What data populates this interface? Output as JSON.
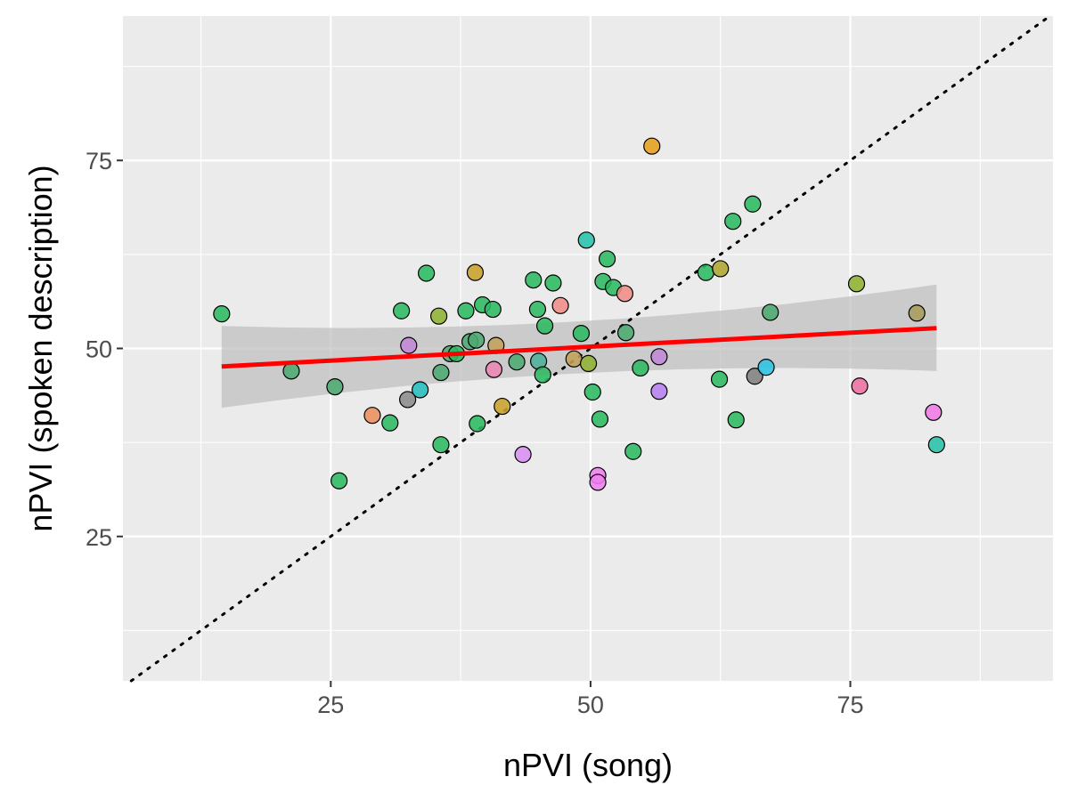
{
  "chart_data": {
    "type": "scatter",
    "xlabel": "nPVI (song)",
    "ylabel": "nPVI (spoken description)",
    "xlim": [
      5.0,
      94.5
    ],
    "ylim": [
      5.8,
      94.2
    ],
    "x_ticks": [
      25,
      50,
      75
    ],
    "y_ticks": [
      25,
      50,
      75
    ],
    "x_tick_labels": [
      "25",
      "50",
      "75"
    ],
    "y_tick_labels": [
      "25",
      "50",
      "75"
    ],
    "grid": true,
    "legend": "none",
    "reference_line": {
      "type": "identity",
      "style": "dotted",
      "color": "#000000"
    },
    "regression": {
      "method": "linear",
      "x_range": [
        14.5,
        83.3
      ],
      "line": [
        [
          14.5,
          47.6
        ],
        [
          83.3,
          52.7
        ]
      ],
      "ci_band": {
        "x": [
          14.5,
          83.3
        ],
        "lower": [
          42.1,
          47.0
        ],
        "upper": [
          53.0,
          58.5
        ]
      },
      "line_color": "#ff0000",
      "band_color": "#bdbdbd"
    },
    "points": [
      {
        "x": 14.5,
        "y": 54.6,
        "color": "#2bb961"
      },
      {
        "x": 21.2,
        "y": 47.0,
        "color": "#4daa72"
      },
      {
        "x": 25.4,
        "y": 44.9,
        "color": "#4daa72"
      },
      {
        "x": 25.8,
        "y": 32.4,
        "color": "#2bb961"
      },
      {
        "x": 29.0,
        "y": 41.1,
        "color": "#eb8f5d"
      },
      {
        "x": 30.7,
        "y": 40.1,
        "color": "#2bb961"
      },
      {
        "x": 31.8,
        "y": 55.0,
        "color": "#2bb961"
      },
      {
        "x": 32.4,
        "y": 43.2,
        "color": "#8b8b8b"
      },
      {
        "x": 32.5,
        "y": 50.4,
        "color": "#c388d6"
      },
      {
        "x": 33.6,
        "y": 44.5,
        "color": "#24bdbd"
      },
      {
        "x": 34.2,
        "y": 60.0,
        "color": "#2bb961"
      },
      {
        "x": 35.4,
        "y": 54.3,
        "color": "#8fb232"
      },
      {
        "x": 35.6,
        "y": 37.2,
        "color": "#2bb961"
      },
      {
        "x": 35.6,
        "y": 46.8,
        "color": "#4daa72"
      },
      {
        "x": 36.5,
        "y": 49.3,
        "color": "#4daa72"
      },
      {
        "x": 37.1,
        "y": 49.3,
        "color": "#2bb961"
      },
      {
        "x": 38.0,
        "y": 55.0,
        "color": "#2bb961"
      },
      {
        "x": 38.4,
        "y": 50.9,
        "color": "#4daa72"
      },
      {
        "x": 38.9,
        "y": 60.1,
        "color": "#c9a12a"
      },
      {
        "x": 39.0,
        "y": 51.1,
        "color": "#4daa72"
      },
      {
        "x": 39.1,
        "y": 40.0,
        "color": "#2bb961"
      },
      {
        "x": 39.6,
        "y": 55.8,
        "color": "#2bb961"
      },
      {
        "x": 40.6,
        "y": 55.2,
        "color": "#2bb961"
      },
      {
        "x": 40.7,
        "y": 47.2,
        "color": "#ea86b3"
      },
      {
        "x": 40.9,
        "y": 50.4,
        "color": "#c0a25a"
      },
      {
        "x": 41.5,
        "y": 42.3,
        "color": "#c9a12a"
      },
      {
        "x": 42.9,
        "y": 48.2,
        "color": "#4daa72"
      },
      {
        "x": 43.5,
        "y": 35.9,
        "color": "#d78ff0"
      },
      {
        "x": 44.5,
        "y": 59.1,
        "color": "#2bb961"
      },
      {
        "x": 44.9,
        "y": 55.2,
        "color": "#2bb961"
      },
      {
        "x": 45.0,
        "y": 48.3,
        "color": "#4baf9a"
      },
      {
        "x": 45.4,
        "y": 46.5,
        "color": "#2bb961"
      },
      {
        "x": 45.6,
        "y": 53.0,
        "color": "#2bb961"
      },
      {
        "x": 46.4,
        "y": 58.7,
        "color": "#2bb961"
      },
      {
        "x": 47.1,
        "y": 55.7,
        "color": "#f08c86"
      },
      {
        "x": 48.4,
        "y": 48.6,
        "color": "#c0a25a"
      },
      {
        "x": 49.1,
        "y": 52.0,
        "color": "#2bb961"
      },
      {
        "x": 49.6,
        "y": 64.4,
        "color": "#27c1a8"
      },
      {
        "x": 49.8,
        "y": 48.0,
        "color": "#8fb232"
      },
      {
        "x": 50.2,
        "y": 44.2,
        "color": "#2bb961"
      },
      {
        "x": 50.7,
        "y": 33.1,
        "color": "#ee80ee"
      },
      {
        "x": 50.7,
        "y": 32.2,
        "color": "#ee80ee"
      },
      {
        "x": 50.9,
        "y": 40.6,
        "color": "#2bb961"
      },
      {
        "x": 51.2,
        "y": 58.9,
        "color": "#2bb961"
      },
      {
        "x": 51.6,
        "y": 61.9,
        "color": "#2bb961"
      },
      {
        "x": 52.2,
        "y": 58.1,
        "color": "#2bb961"
      },
      {
        "x": 53.3,
        "y": 57.3,
        "color": "#f08c86"
      },
      {
        "x": 53.4,
        "y": 52.1,
        "color": "#4daa72"
      },
      {
        "x": 54.1,
        "y": 36.3,
        "color": "#2bb961"
      },
      {
        "x": 54.8,
        "y": 47.4,
        "color": "#2bb961"
      },
      {
        "x": 55.9,
        "y": 76.9,
        "color": "#e69f1c"
      },
      {
        "x": 56.6,
        "y": 48.9,
        "color": "#c388d6"
      },
      {
        "x": 56.6,
        "y": 44.3,
        "color": "#b77ff0"
      },
      {
        "x": 61.1,
        "y": 60.1,
        "color": "#2bb961"
      },
      {
        "x": 62.4,
        "y": 45.9,
        "color": "#2bb961"
      },
      {
        "x": 62.5,
        "y": 60.6,
        "color": "#b1a530"
      },
      {
        "x": 63.7,
        "y": 66.9,
        "color": "#2bb961"
      },
      {
        "x": 64.0,
        "y": 40.5,
        "color": "#2bb961"
      },
      {
        "x": 65.6,
        "y": 69.2,
        "color": "#2bb961"
      },
      {
        "x": 65.8,
        "y": 46.3,
        "color": "#7f7f7f"
      },
      {
        "x": 66.9,
        "y": 47.5,
        "color": "#2cc4e4"
      },
      {
        "x": 67.3,
        "y": 54.8,
        "color": "#4daa72"
      },
      {
        "x": 75.6,
        "y": 58.6,
        "color": "#8fb232"
      },
      {
        "x": 75.9,
        "y": 45.0,
        "color": "#ee6fa3"
      },
      {
        "x": 81.4,
        "y": 54.7,
        "color": "#a89c5a"
      },
      {
        "x": 83.0,
        "y": 41.5,
        "color": "#f07ae6"
      },
      {
        "x": 83.3,
        "y": 37.2,
        "color": "#27c1a8"
      }
    ]
  }
}
